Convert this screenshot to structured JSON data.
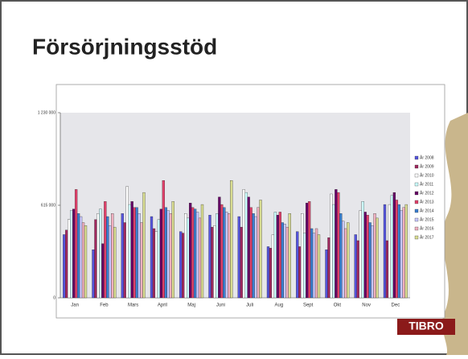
{
  "slide_title": "Försörjningsstöd",
  "logo": "TIBRO",
  "chart_data": {
    "type": "bar",
    "categories": [
      "Jan",
      "Feb",
      "Mars",
      "April",
      "Maj",
      "Juni",
      "Juli",
      "Aug",
      "Sept",
      "Okt",
      "Nov",
      "Dec"
    ],
    "ylim": [
      0,
      1230000
    ],
    "yticks": [
      0,
      {
        "value": 615000,
        "label": "615 000"
      },
      {
        "value": 1230000,
        "label": "1 230 000"
      }
    ],
    "grid": false,
    "legend": "right",
    "series": [
      {
        "name": "År 2008",
        "color": "#5555dd",
        "values": [
          420000,
          320000,
          560000,
          540000,
          440000,
          550000,
          540000,
          340000,
          440000,
          320000,
          420000,
          620000
        ]
      },
      {
        "name": "År 2009",
        "color": "#a0285f",
        "values": [
          450000,
          520000,
          500000,
          460000,
          430000,
          470000,
          470000,
          330000,
          340000,
          400000,
          380000,
          380000
        ]
      },
      {
        "name": "År 2010",
        "color": "#ffffff",
        "values": [
          520000,
          560000,
          740000,
          440000,
          560000,
          480000,
          720000,
          420000,
          560000,
          690000,
          580000,
          620000
        ]
      },
      {
        "name": "År 2011",
        "color": "#ccffff",
        "values": [
          580000,
          590000,
          620000,
          520000,
          530000,
          560000,
          700000,
          570000,
          430000,
          620000,
          640000,
          680000
        ]
      },
      {
        "name": "År 2012",
        "color": "#660066",
        "values": [
          590000,
          360000,
          640000,
          590000,
          630000,
          670000,
          670000,
          550000,
          630000,
          720000,
          570000,
          700000
        ]
      },
      {
        "name": "År 2013",
        "color": "#e0406a",
        "values": [
          720000,
          640000,
          600000,
          780000,
          600000,
          620000,
          600000,
          570000,
          640000,
          700000,
          550000,
          650000
        ]
      },
      {
        "name": "År 2014",
        "color": "#3b7fd0",
        "values": [
          560000,
          540000,
          600000,
          600000,
          590000,
          600000,
          560000,
          500000,
          460000,
          560000,
          500000,
          620000
        ]
      },
      {
        "name": "År 2015",
        "color": "#c8c8ff",
        "values": [
          540000,
          480000,
          560000,
          580000,
          570000,
          570000,
          540000,
          490000,
          430000,
          510000,
          480000,
          580000
        ]
      },
      {
        "name": "År 2016",
        "color": "#f0b0c0",
        "values": [
          500000,
          560000,
          500000,
          560000,
          530000,
          560000,
          600000,
          470000,
          460000,
          460000,
          560000,
          600000
        ]
      },
      {
        "name": "År 2017",
        "color": "#d8dc90",
        "values": [
          480000,
          470000,
          700000,
          640000,
          620000,
          780000,
          650000,
          560000,
          420000,
          500000,
          530000,
          620000
        ]
      }
    ]
  }
}
